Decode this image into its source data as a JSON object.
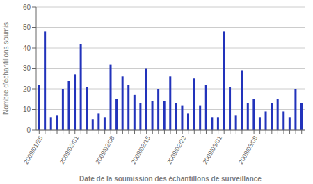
{
  "chart_data": {
    "type": "bar",
    "xlabel": "Date de la soumission des échantillons de surveillance",
    "ylabel": "Nombre d'échantillons soumis",
    "categories": [
      "2009/01/25",
      null,
      null,
      null,
      null,
      null,
      "2009/02/01",
      null,
      null,
      null,
      null,
      null,
      "2009/02/08",
      null,
      null,
      null,
      null,
      null,
      "2009/02/15",
      null,
      null,
      null,
      null,
      null,
      "2009/02/22",
      null,
      null,
      null,
      null,
      null,
      "2009/03/01",
      null,
      null,
      null,
      null,
      null,
      "2009/03/08",
      null,
      null,
      null,
      null,
      null,
      null,
      null,
      null
    ],
    "values": [
      22,
      48,
      6,
      7,
      20,
      24,
      27,
      42,
      21,
      5,
      8,
      6,
      32,
      15,
      26,
      22,
      17,
      13,
      30,
      14,
      20,
      14,
      26,
      13,
      12,
      8,
      25,
      12,
      22,
      6,
      6,
      48,
      21,
      7,
      29,
      13,
      15,
      6,
      9,
      13,
      15,
      9,
      6,
      20,
      13
    ],
    "color": "#2233bb",
    "ylim": [
      0,
      60
    ],
    "yticks": [
      0,
      10,
      20,
      30,
      40,
      50,
      60
    ],
    "grid": true
  }
}
